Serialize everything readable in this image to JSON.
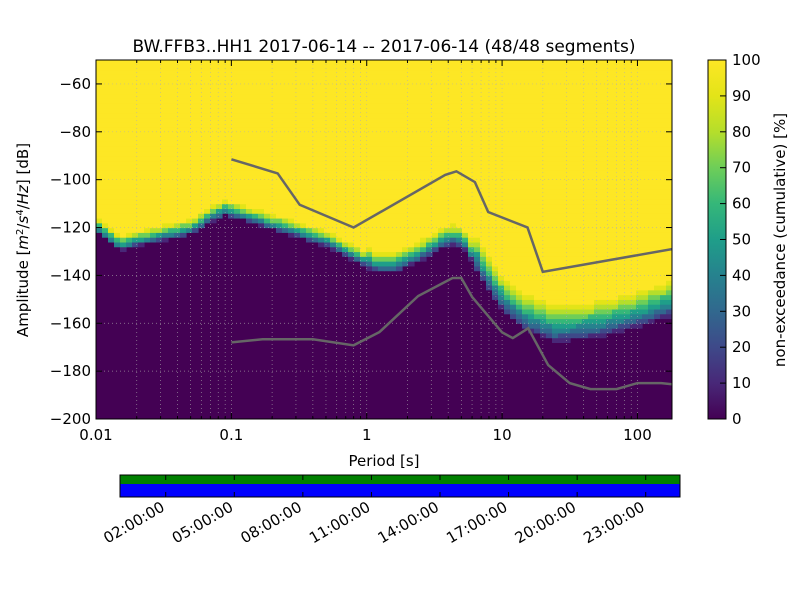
{
  "chart_data": {
    "type": "heatmap",
    "title": "BW.FFB3..HH1   2017-06-14 -- 2017-06-14  (48/48 segments)",
    "xlabel": "Period [s]",
    "ylabel_parts": [
      "Amplitude [",
      "m",
      "2",
      "/",
      "s",
      "4",
      "/",
      "Hz",
      "] [dB]"
    ],
    "x_scale": "log",
    "xlim": [
      0.01,
      180
    ],
    "ylim": [
      -200,
      -50
    ],
    "x_ticks": [
      {
        "value": 0.01,
        "label": "0.01"
      },
      {
        "value": 0.1,
        "label": "0.1"
      },
      {
        "value": 1,
        "label": "1"
      },
      {
        "value": 10,
        "label": "10"
      },
      {
        "value": 100,
        "label": "100"
      }
    ],
    "y_ticks": [
      {
        "value": -60,
        "label": "−60"
      },
      {
        "value": -80,
        "label": "−80"
      },
      {
        "value": -100,
        "label": "−100"
      },
      {
        "value": -120,
        "label": "−120"
      },
      {
        "value": -140,
        "label": "−140"
      },
      {
        "value": -160,
        "label": "−160"
      },
      {
        "value": -180,
        "label": "−180"
      },
      {
        "value": -200,
        "label": "−200"
      }
    ],
    "colorbar": {
      "label": "non-exceedance (cumulative) [%]",
      "range": [
        0,
        100
      ],
      "ticks": [
        {
          "value": 0,
          "label": "0"
        },
        {
          "value": 10,
          "label": "10"
        },
        {
          "value": 20,
          "label": "20"
        },
        {
          "value": 30,
          "label": "30"
        },
        {
          "value": 40,
          "label": "40"
        },
        {
          "value": 50,
          "label": "50"
        },
        {
          "value": 60,
          "label": "60"
        },
        {
          "value": 70,
          "label": "70"
        },
        {
          "value": 80,
          "label": "80"
        },
        {
          "value": 90,
          "label": "90"
        },
        {
          "value": 100,
          "label": "100"
        }
      ],
      "colors": [
        "#440154",
        "#482878",
        "#3e4989",
        "#31688e",
        "#26828e",
        "#1f9e89",
        "#35b779",
        "#6ece58",
        "#b5de2b",
        "#e3e418",
        "#fde725"
      ]
    },
    "psd_boundary": [
      {
        "period": 0.01,
        "db": -122
      },
      {
        "period": 0.015,
        "db": -130
      },
      {
        "period": 0.02,
        "db": -128
      },
      {
        "period": 0.03,
        "db": -126
      },
      {
        "period": 0.05,
        "db": -123
      },
      {
        "period": 0.07,
        "db": -118
      },
      {
        "period": 0.09,
        "db": -115
      },
      {
        "period": 0.12,
        "db": -117
      },
      {
        "period": 0.2,
        "db": -121
      },
      {
        "period": 0.3,
        "db": -124
      },
      {
        "period": 0.5,
        "db": -128
      },
      {
        "period": 0.8,
        "db": -134
      },
      {
        "period": 1.2,
        "db": -139
      },
      {
        "period": 1.6,
        "db": -139
      },
      {
        "period": 2.5,
        "db": -134
      },
      {
        "period": 3.5,
        "db": -129
      },
      {
        "period": 4.5,
        "db": -127
      },
      {
        "period": 5.5,
        "db": -130
      },
      {
        "period": 7,
        "db": -142
      },
      {
        "period": 10,
        "db": -155
      },
      {
        "period": 15,
        "db": -163
      },
      {
        "period": 25,
        "db": -168
      },
      {
        "period": 50,
        "db": -166
      },
      {
        "period": 100,
        "db": -162
      },
      {
        "period": 180,
        "db": -157
      }
    ],
    "nhnm": [
      {
        "period": 0.1,
        "db": -91.5
      },
      {
        "period": 0.22,
        "db": -97.4
      },
      {
        "period": 0.32,
        "db": -110.5
      },
      {
        "period": 0.8,
        "db": -120
      },
      {
        "period": 3.8,
        "db": -98
      },
      {
        "period": 4.6,
        "db": -96.5
      },
      {
        "period": 6.3,
        "db": -101
      },
      {
        "period": 7.9,
        "db": -113.5
      },
      {
        "period": 15.4,
        "db": -120
      },
      {
        "period": 20,
        "db": -138.5
      },
      {
        "period": 180,
        "db": -129
      }
    ],
    "nlnm": [
      {
        "period": 0.1,
        "db": -168
      },
      {
        "period": 0.17,
        "db": -166.7
      },
      {
        "period": 0.4,
        "db": -166.7
      },
      {
        "period": 0.8,
        "db": -169.2
      },
      {
        "period": 1.24,
        "db": -163.7
      },
      {
        "period": 2.4,
        "db": -148.6
      },
      {
        "period": 4.3,
        "db": -141.1
      },
      {
        "period": 5,
        "db": -141.1
      },
      {
        "period": 6,
        "db": -149
      },
      {
        "period": 10,
        "db": -163.8
      },
      {
        "period": 12,
        "db": -166.2
      },
      {
        "period": 15.6,
        "db": -162.1
      },
      {
        "period": 21.9,
        "db": -177.5
      },
      {
        "period": 31.6,
        "db": -185
      },
      {
        "period": 45,
        "db": -187.5
      },
      {
        "period": 70,
        "db": -187.5
      },
      {
        "period": 100,
        "db": -185
      },
      {
        "period": 150,
        "db": -185
      },
      {
        "period": 180,
        "db": -185.5
      }
    ],
    "timeline": {
      "labels": [
        "02:00:00",
        "05:00:00",
        "08:00:00",
        "11:00:00",
        "14:00:00",
        "17:00:00",
        "20:00:00",
        "23:00:00"
      ],
      "label_hours": [
        2,
        5,
        8,
        11,
        14,
        17,
        20,
        23
      ],
      "range_hours": [
        0,
        24.5
      ],
      "segment_count": 48,
      "colors": {
        "data": "#0000ff",
        "used": "#008000"
      }
    }
  }
}
